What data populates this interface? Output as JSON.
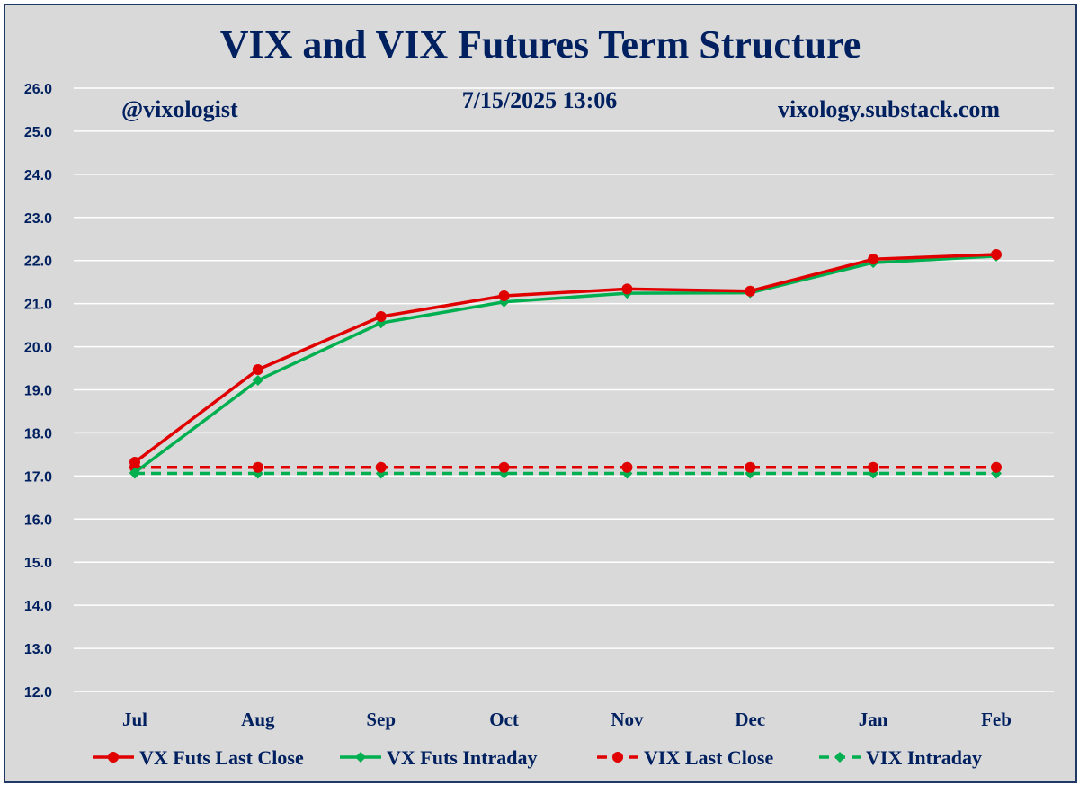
{
  "chart_data": {
    "type": "line",
    "title": "VIX and VIX Futures Term Structure",
    "annotations": {
      "handle": "@vixologist",
      "timestamp": "7/15/2025 13:06",
      "website": "vixology.substack.com"
    },
    "categories": [
      "Jul",
      "Aug",
      "Sep",
      "Oct",
      "Nov",
      "Dec",
      "Jan",
      "Feb"
    ],
    "ylim": [
      12.0,
      26.0
    ],
    "yticks": [
      "12.0",
      "13.0",
      "14.0",
      "15.0",
      "16.0",
      "17.0",
      "18.0",
      "19.0",
      "20.0",
      "21.0",
      "22.0",
      "23.0",
      "24.0",
      "25.0",
      "26.0"
    ],
    "grid": true,
    "legend_position": "bottom",
    "series": [
      {
        "name": "VX Futs Last Close",
        "color": "#e00000",
        "dash": "solid",
        "marker": "circle",
        "values": [
          17.32,
          19.47,
          20.7,
          21.18,
          21.34,
          21.29,
          22.03,
          22.14
        ]
      },
      {
        "name": "VX Futs Intraday",
        "color": "#00b050",
        "dash": "solid",
        "marker": "diamond",
        "values": [
          17.08,
          19.22,
          20.55,
          21.04,
          21.24,
          21.25,
          21.95,
          22.1
        ]
      },
      {
        "name": "VIX Last Close",
        "color": "#e00000",
        "dash": "dashed",
        "marker": "circle",
        "values": [
          17.2,
          17.2,
          17.2,
          17.2,
          17.2,
          17.2,
          17.2,
          17.2
        ]
      },
      {
        "name": "VIX Intraday",
        "color": "#00b050",
        "dash": "dashed",
        "marker": "diamond",
        "values": [
          17.06,
          17.06,
          17.06,
          17.06,
          17.06,
          17.06,
          17.06,
          17.06
        ]
      }
    ]
  }
}
